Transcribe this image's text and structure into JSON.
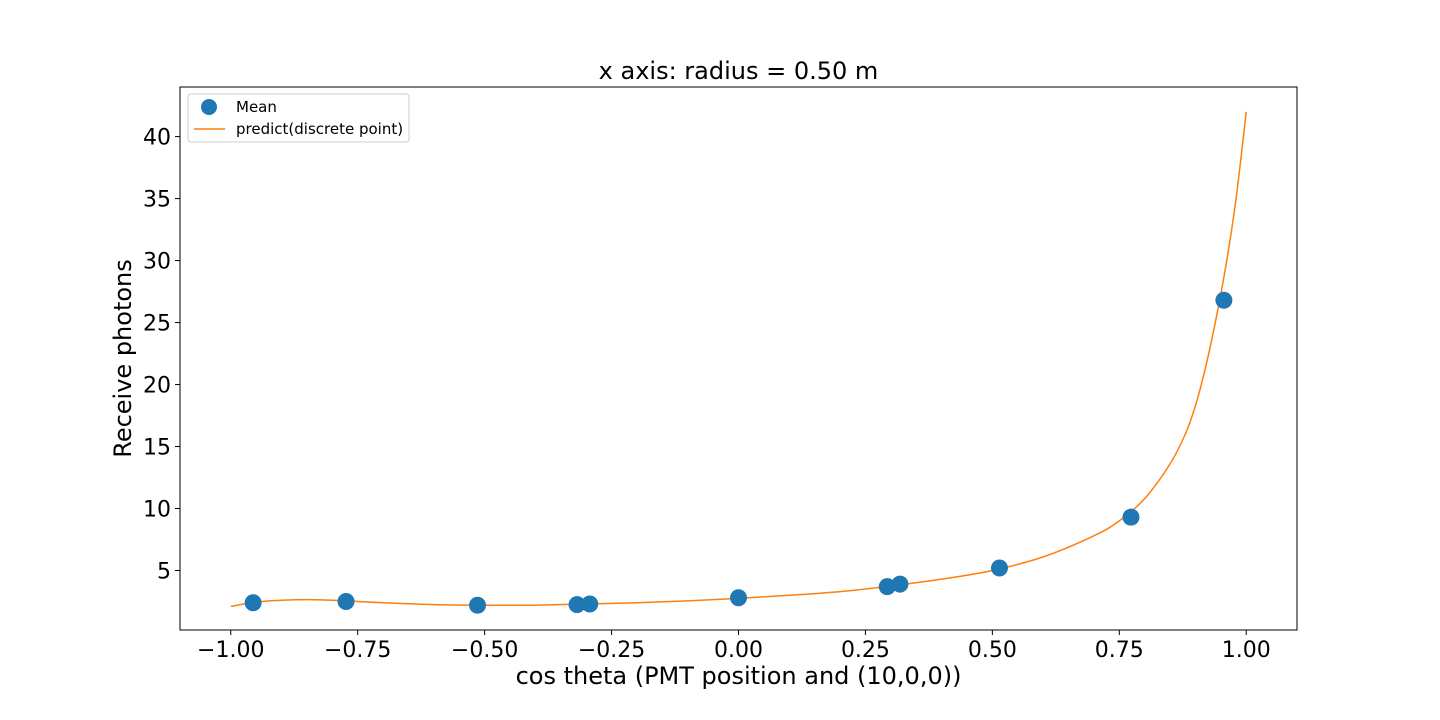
{
  "chart_data": {
    "type": "scatter",
    "title": "x axis: radius = 0.50 m",
    "xlabel": "cos theta (PMT position and (10,0,0))",
    "ylabel": "Receive photons",
    "xlim": [
      -1.1,
      1.1
    ],
    "ylim": [
      0.2,
      44.0
    ],
    "xticks": [
      -1.0,
      -0.75,
      -0.5,
      -0.25,
      0.0,
      0.25,
      0.5,
      0.75,
      1.0
    ],
    "xtick_labels": [
      "−1.00",
      "−0.75",
      "−0.50",
      "−0.25",
      "0.00",
      "0.25",
      "0.50",
      "0.75",
      "1.00"
    ],
    "yticks": [
      5,
      10,
      15,
      20,
      25,
      30,
      35,
      40
    ],
    "ytick_labels": [
      "5",
      "10",
      "15",
      "20",
      "25",
      "30",
      "35",
      "40"
    ],
    "grid": false,
    "legend": "top-left",
    "series": [
      {
        "name": "Mean",
        "kind": "scatter",
        "color": "#1f77b4",
        "x": [
          -0.956,
          -0.773,
          -0.514,
          -0.318,
          -0.293,
          0.0,
          0.293,
          0.318,
          0.514,
          0.773,
          0.956
        ],
        "y": [
          2.4,
          2.5,
          2.2,
          2.25,
          2.3,
          2.8,
          3.7,
          3.9,
          5.2,
          9.3,
          26.8
        ]
      },
      {
        "name": "predict(discrete point)",
        "kind": "line",
        "color": "#ff7f0e",
        "x": [
          -1.0,
          -0.95,
          -0.9,
          -0.85,
          -0.8,
          -0.75,
          -0.7,
          -0.6,
          -0.5,
          -0.4,
          -0.3,
          -0.2,
          -0.1,
          0.0,
          0.1,
          0.2,
          0.3,
          0.4,
          0.5,
          0.6,
          0.7,
          0.75,
          0.8,
          0.85,
          0.88,
          0.9,
          0.92,
          0.94,
          0.96,
          0.98,
          1.0
        ],
        "y": [
          2.1,
          2.45,
          2.6,
          2.65,
          2.6,
          2.5,
          2.4,
          2.25,
          2.2,
          2.2,
          2.3,
          2.4,
          2.55,
          2.75,
          3.0,
          3.3,
          3.75,
          4.3,
          5.0,
          6.1,
          7.8,
          9.0,
          10.8,
          13.6,
          16.0,
          18.3,
          21.4,
          25.2,
          29.6,
          35.0,
          42.0
        ]
      }
    ]
  }
}
